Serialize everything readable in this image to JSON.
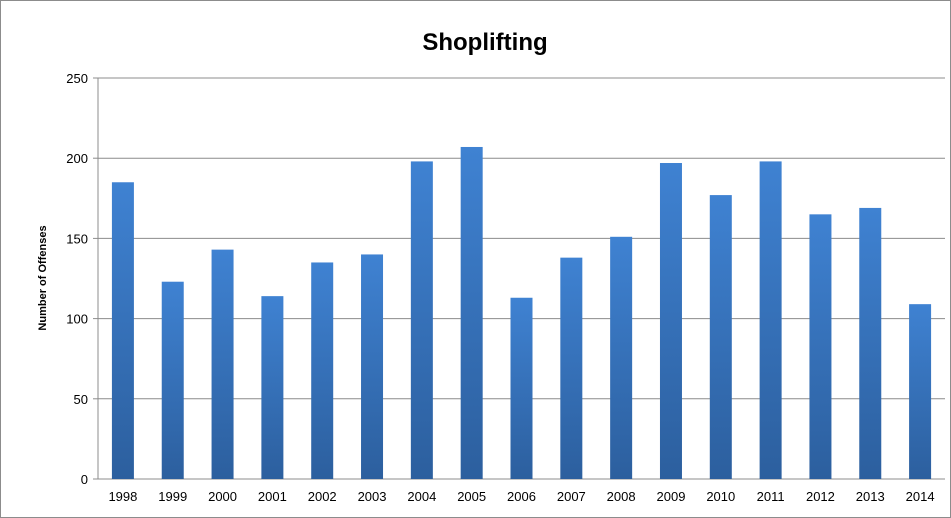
{
  "chart_data": {
    "type": "bar",
    "title": "Shoplifting",
    "xlabel": "",
    "ylabel": "Number of Offenses",
    "ylim": [
      0,
      250
    ],
    "yticks": [
      0,
      50,
      100,
      150,
      200,
      250
    ],
    "grid": true,
    "legend": "none",
    "bar_color_top": "#3f82d2",
    "bar_color_bottom": "#2c5f9e",
    "categories": [
      "1998",
      "1999",
      "2000",
      "2001",
      "2002",
      "2003",
      "2004",
      "2005",
      "2006",
      "2007",
      "2008",
      "2009",
      "2010",
      "2011",
      "2012",
      "2013",
      "2014"
    ],
    "values": [
      185,
      123,
      143,
      114,
      135,
      140,
      198,
      207,
      113,
      138,
      151,
      197,
      177,
      198,
      165,
      169,
      109
    ]
  }
}
